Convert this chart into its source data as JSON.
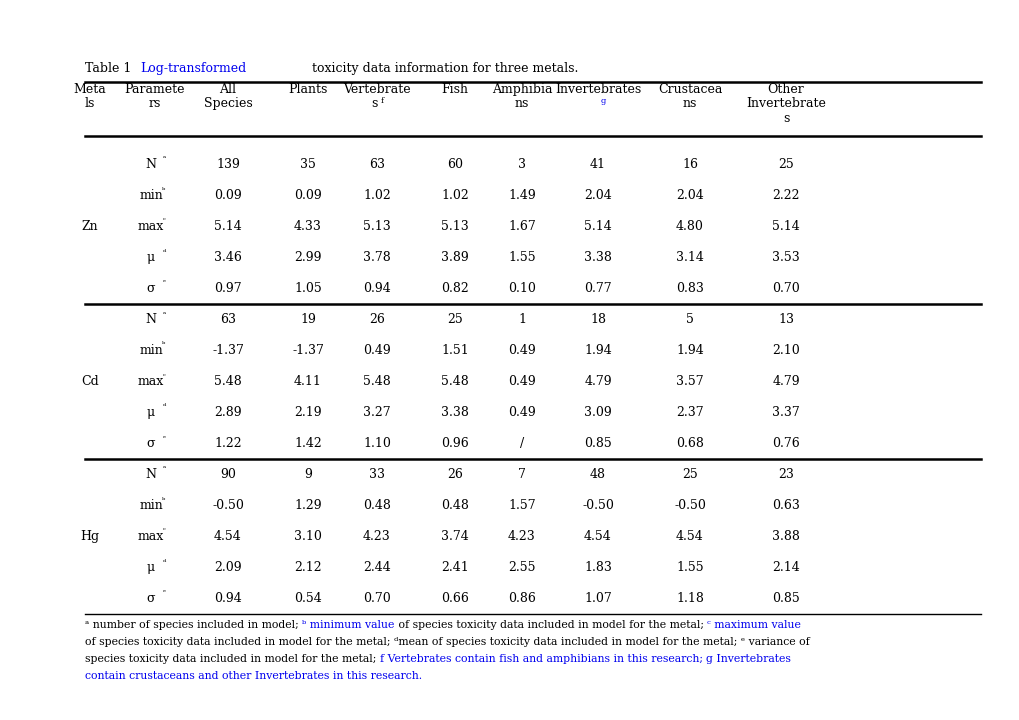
{
  "blue": "#0000EE",
  "black": "#000000",
  "cxs": [
    90,
    155,
    228,
    308,
    377,
    455,
    522,
    598,
    690,
    786
  ],
  "header_l1": [
    "Meta",
    "Paramete",
    "All",
    "Plants",
    "Vertebrate",
    "Fish",
    "Amphibia",
    "Invertebrates",
    "Crustacea",
    "Other"
  ],
  "header_l2": [
    "ls",
    "rs",
    "Species",
    "",
    "",
    "",
    "ns",
    "",
    "ns",
    "Invertebrate"
  ],
  "metals": [
    "Zn",
    "Cd",
    "Hg"
  ],
  "param_bases": [
    "N",
    "min",
    "max",
    "μ",
    "σ"
  ],
  "param_sups": [
    "a",
    "b",
    "c",
    "d",
    "e"
  ],
  "table_data": {
    "Zn": [
      [
        "139",
        "35",
        "63",
        "60",
        "3",
        "41",
        "16",
        "25"
      ],
      [
        "0.09",
        "0.09",
        "1.02",
        "1.02",
        "1.49",
        "2.04",
        "2.04",
        "2.22"
      ],
      [
        "5.14",
        "4.33",
        "5.13",
        "5.13",
        "1.67",
        "5.14",
        "4.80",
        "5.14"
      ],
      [
        "3.46",
        "2.99",
        "3.78",
        "3.89",
        "1.55",
        "3.38",
        "3.14",
        "3.53"
      ],
      [
        "0.97",
        "1.05",
        "0.94",
        "0.82",
        "0.10",
        "0.77",
        "0.83",
        "0.70"
      ]
    ],
    "Cd": [
      [
        "63",
        "19",
        "26",
        "25",
        "1",
        "18",
        "5",
        "13"
      ],
      [
        "-1.37",
        "-1.37",
        "0.49",
        "1.51",
        "0.49",
        "1.94",
        "1.94",
        "2.10"
      ],
      [
        "5.48",
        "4.11",
        "5.48",
        "5.48",
        "0.49",
        "4.79",
        "3.57",
        "4.79"
      ],
      [
        "2.89",
        "2.19",
        "3.27",
        "3.38",
        "0.49",
        "3.09",
        "2.37",
        "3.37"
      ],
      [
        "1.22",
        "1.42",
        "1.10",
        "0.96",
        "/",
        "0.85",
        "0.68",
        "0.76"
      ]
    ],
    "Hg": [
      [
        "90",
        "9",
        "33",
        "26",
        "7",
        "48",
        "25",
        "23"
      ],
      [
        "-0.50",
        "1.29",
        "0.48",
        "0.48",
        "1.57",
        "-0.50",
        "-0.50",
        "0.63"
      ],
      [
        "4.54",
        "3.10",
        "4.23",
        "3.74",
        "4.23",
        "4.54",
        "4.54",
        "3.88"
      ],
      [
        "2.09",
        "2.12",
        "2.44",
        "2.41",
        "2.55",
        "1.83",
        "1.55",
        "2.14"
      ],
      [
        "0.94",
        "0.54",
        "0.70",
        "0.66",
        "0.86",
        "1.07",
        "1.18",
        "0.85"
      ]
    ]
  },
  "foot_fs": 7.8,
  "cell_fs": 9.0,
  "title_fs": 9.0,
  "sup_fs": 6.0
}
